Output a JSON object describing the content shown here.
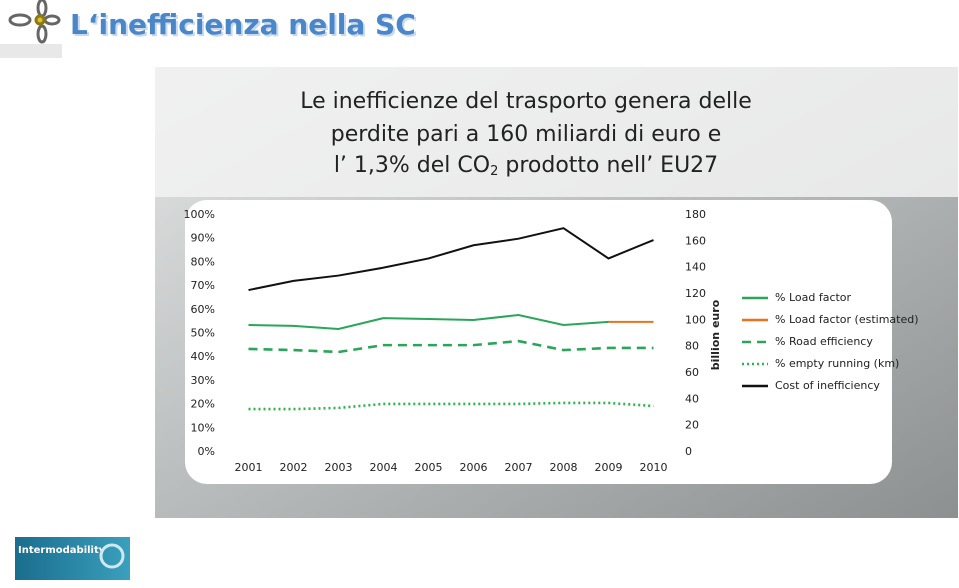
{
  "header": {
    "title": "L‘inefficienza nella SC"
  },
  "subtitle": {
    "lines": [
      "Le inefficienze del trasporto genera delle",
      "perdite pari a 160 miliardi di euro e"
    ],
    "last_line": [
      "l’ 1,3% del CO",
      "2",
      " prodotto nell’ EU27"
    ]
  },
  "logo": {
    "text": "Intermodability"
  },
  "chart_data": {
    "type": "line",
    "categories": [
      "2001",
      "2002",
      "2003",
      "2004",
      "2005",
      "2006",
      "2007",
      "2008",
      "2009",
      "2010"
    ],
    "ylim": [
      0,
      100
    ],
    "yticks": [
      {
        "value": 0,
        "label": "0%"
      },
      {
        "value": 10,
        "label": "10%"
      },
      {
        "value": 20,
        "label": "20%"
      },
      {
        "value": 30,
        "label": "30%"
      },
      {
        "value": 40,
        "label": "40%"
      },
      {
        "value": 50,
        "label": "50%"
      },
      {
        "value": 60,
        "label": "60%"
      },
      {
        "value": 70,
        "label": "70%"
      },
      {
        "value": 80,
        "label": "80%"
      },
      {
        "value": 90,
        "label": "90%"
      },
      {
        "value": 100,
        "label": "100%"
      }
    ],
    "y2lim": [
      0,
      180
    ],
    "y2ticks": [
      0,
      20,
      40,
      60,
      80,
      100,
      120,
      140,
      160,
      180
    ],
    "y2label": "billion euro",
    "legend": "right",
    "series": [
      {
        "name": "% Load factor",
        "color": "#2aa55a",
        "dash": "solid",
        "values": [
          53.6,
          53.2,
          51.9,
          56.5,
          56.1,
          55.7,
          57.8,
          53.6,
          54.9,
          null
        ]
      },
      {
        "name": "% Load factor (estimated)",
        "color": "#e8731f",
        "dash": "solid",
        "values": [
          null,
          null,
          null,
          null,
          null,
          null,
          null,
          null,
          54.9,
          54.9
        ]
      },
      {
        "name": "% Road efficiency",
        "color": "#2aa55a",
        "dash": "dashed",
        "values": [
          43.5,
          43.0,
          42.2,
          45.1,
          45.1,
          45.1,
          46.8,
          43.0,
          43.9,
          43.9
        ]
      },
      {
        "name": "% empty running (km)",
        "color": "#2cb34a",
        "dash": "dotted",
        "values": [
          18.1,
          18.1,
          18.6,
          20.3,
          20.3,
          20.3,
          20.3,
          20.7,
          20.7,
          19.4
        ]
      },
      {
        "name": "Cost of inefficiency",
        "color": "#111111",
        "dash": "solid",
        "axis": "y2",
        "values": [
          123,
          130,
          134,
          140,
          147,
          157,
          162,
          170,
          147,
          161
        ]
      }
    ]
  }
}
